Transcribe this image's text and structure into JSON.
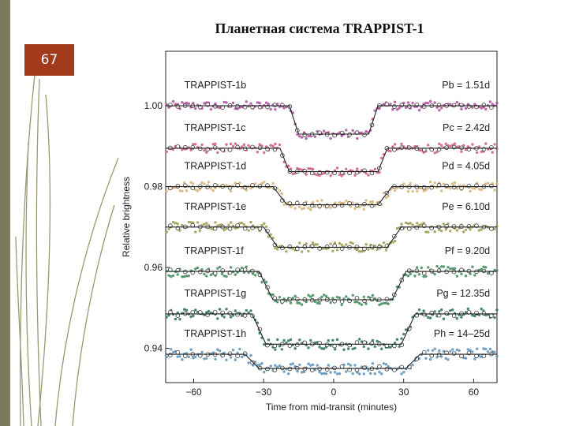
{
  "slide": {
    "title": "Планетная система TRAPPIST-1",
    "page_number": "67"
  },
  "colors": {
    "band": "#7d7a5a",
    "badge": "#a23a1c",
    "fit_line": "#222222",
    "decor_lines": "#9c9873"
  },
  "chart_data": {
    "type": "scatter",
    "title": "",
    "xlabel": "Time from mid-transit (minutes)",
    "ylabel": "Relative brightness",
    "xlim": [
      -72,
      70
    ],
    "ylim": [
      0.9315,
      1.0135
    ],
    "xticks": [
      -60,
      -30,
      0,
      30,
      60
    ],
    "xtick_labels": [
      "−60",
      "−30",
      "0",
      "30",
      "60"
    ],
    "yticks": [
      1.0,
      0.98,
      0.96,
      0.94
    ],
    "ytick_labels": [
      "1.00",
      "0.98",
      "0.96",
      "0.94"
    ],
    "grid": false,
    "legend": "none",
    "series": [
      {
        "name": "TRAPPIST-1b",
        "period": "Pb = 1.51d",
        "color": "#b0489b",
        "baseline": 1.0,
        "depth": 0.007,
        "ingress": -17,
        "egress": 17,
        "duration_edge": 2
      },
      {
        "name": "TRAPPIST-1c",
        "period": "Pc = 2.42d",
        "color": "#cc5878",
        "baseline": 0.9895,
        "depth": 0.0058,
        "ingress": -21,
        "egress": 21,
        "duration_edge": 2
      },
      {
        "name": "TRAPPIST-1d",
        "period": "Pd = 4.05d",
        "color": "#d8b070",
        "baseline": 0.98,
        "depth": 0.0045,
        "ingress": -23,
        "egress": 22,
        "duration_edge": 3
      },
      {
        "name": "TRAPPIST-1e",
        "period": "Pe = 6.10d",
        "color": "#9c9a4a",
        "baseline": 0.97,
        "depth": 0.005,
        "ingress": -27,
        "egress": 26,
        "duration_edge": 3
      },
      {
        "name": "TRAPPIST-1f",
        "period": "Pf = 9.20d",
        "color": "#3c8a58",
        "baseline": 0.959,
        "depth": 0.007,
        "ingress": -29,
        "egress": 28,
        "duration_edge": 3
      },
      {
        "name": "TRAPPIST-1g",
        "period": "Pg = 12.35d",
        "color": "#287050",
        "baseline": 0.9485,
        "depth": 0.0075,
        "ingress": -32,
        "egress": 32,
        "duration_edge": 3
      },
      {
        "name": "TRAPPIST-1h",
        "period": "Ph = 14–25d",
        "color": "#5890b8",
        "baseline": 0.9385,
        "depth": 0.0035,
        "ingress": -35,
        "egress": 34,
        "duration_edge": 3
      }
    ]
  }
}
